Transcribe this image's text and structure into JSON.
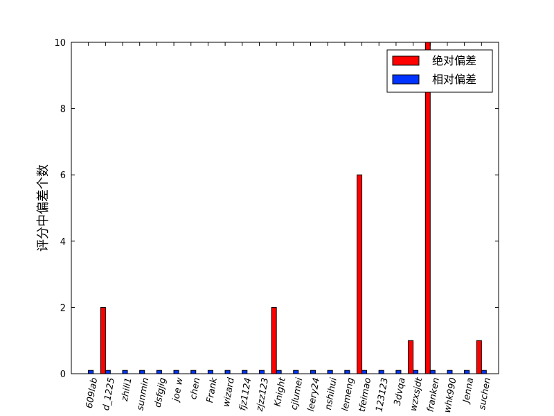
{
  "chart_data": {
    "type": "bar",
    "title": "",
    "xlabel": "",
    "ylabel": "评分中偏差个数",
    "ylim": [
      0,
      10
    ],
    "yticks": [
      0,
      2,
      4,
      6,
      8,
      10
    ],
    "grid": false,
    "legend_position": "top-right",
    "categories": [
      "609lab",
      "d_1225",
      "zhili1",
      "sunmin",
      "dsfgjig",
      "joe w",
      "chen",
      "Frank",
      "wizard",
      "fjz1124",
      "zjzz123",
      "Knight",
      "cjlumei",
      "leery24",
      "nshihui",
      "lemeng",
      "tfeimao",
      "123123",
      "3dvqa",
      "wzxsjdt",
      "franken",
      "whk990",
      "Jenna",
      "suchen"
    ],
    "series": [
      {
        "name": "绝对偏差",
        "color": "#ff0000",
        "values": [
          0,
          2,
          0,
          0,
          0,
          0,
          0,
          0,
          0,
          0,
          0,
          2,
          0,
          0,
          0,
          0,
          6,
          0,
          0,
          1,
          10,
          0,
          0,
          1
        ]
      },
      {
        "name": "相对偏差",
        "color": "#0033ff",
        "values": [
          0.1,
          0.1,
          0.1,
          0.1,
          0.1,
          0.1,
          0.1,
          0.1,
          0.1,
          0.1,
          0.1,
          0.1,
          0.1,
          0.1,
          0.1,
          0.1,
          0.1,
          0.1,
          0.1,
          0.1,
          0.1,
          0.1,
          0.1,
          0.1
        ]
      }
    ]
  }
}
